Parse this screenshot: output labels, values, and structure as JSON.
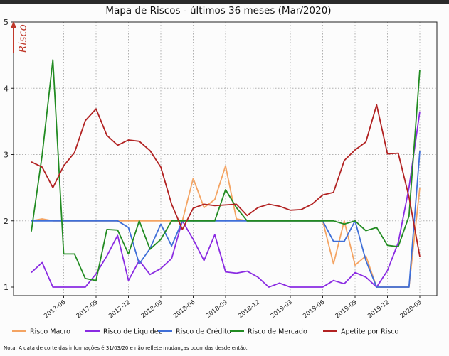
{
  "chart_data": {
    "type": "line",
    "title": "Mapa de Riscos - últimos 36 meses (Mar/2020)",
    "ylabel": "Risco",
    "ylim": [
      1,
      5
    ],
    "yticks": [
      1,
      2,
      3,
      4,
      5
    ],
    "grid": true,
    "legend_position": "bottom",
    "note": "Nota: A data de corte das informações é 31/03/20 e não reflete mudanças ocorridas desde então.",
    "x": [
      "2017-03",
      "2017-04",
      "2017-05",
      "2017-06",
      "2017-07",
      "2017-08",
      "2017-09",
      "2017-10",
      "2017-11",
      "2017-12",
      "2018-01",
      "2018-02",
      "2018-03",
      "2018-04",
      "2018-05",
      "2018-06",
      "2018-07",
      "2018-08",
      "2018-09",
      "2018-10",
      "2018-11",
      "2018-12",
      "2019-01",
      "2019-02",
      "2019-03",
      "2019-04",
      "2019-05",
      "2019-06",
      "2019-07",
      "2019-08",
      "2019-09",
      "2019-10",
      "2019-11",
      "2019-12",
      "2020-01",
      "2020-02",
      "2020-03"
    ],
    "xticks": [
      "2017-06",
      "2017-09",
      "2017-12",
      "2018-03",
      "2018-06",
      "2018-09",
      "2018-12",
      "2019-03",
      "2019-06",
      "2019-09",
      "2019-12",
      "2020-03"
    ],
    "series": [
      {
        "name": "Risco Macro",
        "color": "#f4a463",
        "values": [
          2.0,
          2.03,
          2.0,
          2.0,
          2.0,
          2.0,
          2.0,
          2.0,
          2.0,
          2.0,
          2.0,
          2.0,
          2.0,
          2.0,
          2.0,
          2.64,
          2.2,
          2.32,
          2.83,
          2.03,
          2.0,
          2.0,
          2.0,
          2.0,
          2.0,
          2.0,
          2.0,
          2.0,
          1.35,
          2.0,
          1.33,
          1.47,
          1.0,
          1.0,
          1.0,
          1.0,
          2.5
        ]
      },
      {
        "name": "Risco de Liquidez",
        "color": "#8a2be2",
        "values": [
          1.22,
          1.37,
          1.0,
          1.0,
          1.0,
          1.0,
          1.2,
          1.47,
          1.78,
          1.1,
          1.4,
          1.19,
          1.28,
          1.43,
          2.0,
          1.72,
          1.4,
          1.79,
          1.23,
          1.21,
          1.24,
          1.15,
          1.0,
          1.06,
          1.0,
          1.0,
          1.0,
          1.0,
          1.1,
          1.05,
          1.22,
          1.15,
          1.0,
          1.25,
          1.67,
          2.5,
          3.65
        ]
      },
      {
        "name": "Risco de Crédito",
        "color": "#3f6fd8",
        "values": [
          2.0,
          2.0,
          2.0,
          2.0,
          2.0,
          2.0,
          2.0,
          2.0,
          2.0,
          1.9,
          1.35,
          1.58,
          1.95,
          1.62,
          2.0,
          2.0,
          2.0,
          2.0,
          2.0,
          2.0,
          2.0,
          2.0,
          2.0,
          2.0,
          2.0,
          2.0,
          2.0,
          2.0,
          1.69,
          1.69,
          2.0,
          1.4,
          1.0,
          1.0,
          1.0,
          1.0,
          3.05
        ]
      },
      {
        "name": "Risco de Mercado",
        "color": "#228b22",
        "values": [
          1.84,
          2.99,
          4.43,
          1.5,
          1.5,
          1.13,
          1.1,
          1.87,
          1.86,
          1.5,
          2.0,
          1.57,
          1.72,
          2.0,
          2.0,
          2.0,
          2.0,
          2.0,
          2.47,
          2.2,
          2.0,
          2.0,
          2.0,
          2.0,
          2.0,
          2.0,
          2.0,
          2.0,
          2.0,
          1.95,
          2.0,
          1.85,
          1.9,
          1.63,
          1.61,
          2.07,
          4.28
        ]
      },
      {
        "name": "Apetite por Risco",
        "color": "#b22222",
        "values": [
          2.89,
          2.81,
          2.5,
          2.83,
          3.03,
          3.51,
          3.69,
          3.29,
          3.14,
          3.22,
          3.2,
          3.06,
          2.81,
          2.25,
          1.87,
          2.19,
          2.25,
          2.23,
          2.24,
          2.25,
          2.08,
          2.2,
          2.25,
          2.22,
          2.16,
          2.17,
          2.25,
          2.39,
          2.43,
          2.91,
          3.07,
          3.19,
          3.75,
          3.01,
          3.02,
          2.36,
          1.46
        ]
      }
    ]
  }
}
